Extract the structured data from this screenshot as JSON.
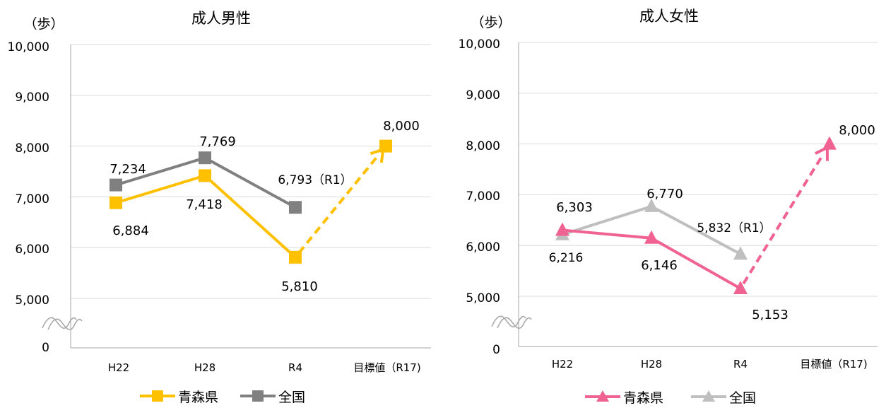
{
  "colors": {
    "male_aomori": "#FFC000",
    "male_national": "#808080",
    "female_aomori": "#F06292",
    "female_national": "#BFBFBF",
    "grid": "#D9D9D9",
    "axis": "#A6A6A6"
  },
  "chart_data": [
    {
      "type": "line",
      "title": "成人男性",
      "unit_label": "（歩）",
      "categories": [
        "H22",
        "H28",
        "R4",
        "目標値（R17)"
      ],
      "y_ticks": [
        "0",
        "5,000",
        "6,000",
        "7,000",
        "8,000",
        "9,000",
        "10,000"
      ],
      "axis_break": true,
      "ylim": [
        5000,
        10000
      ],
      "series": [
        {
          "name": "青森県",
          "marker": "square",
          "values": [
            6884,
            7418,
            5810,
            null
          ],
          "labels": [
            "6,884",
            "7,418",
            "5,810",
            ""
          ],
          "target": 8000,
          "target_label": "8,000"
        },
        {
          "name": "全国",
          "marker": "square",
          "values": [
            7234,
            7769,
            6793,
            null
          ],
          "labels": [
            "7,234",
            "7,769",
            "6,793（R1）",
            ""
          ]
        }
      ],
      "legend": [
        "青森県",
        "全国"
      ]
    },
    {
      "type": "line",
      "title": "成人女性",
      "unit_label": "（歩）",
      "categories": [
        "H22",
        "H28",
        "R4",
        "目標値（R17)"
      ],
      "y_ticks": [
        "0",
        "5,000",
        "6,000",
        "7,000",
        "8,000",
        "9,000",
        "10,000"
      ],
      "axis_break": true,
      "ylim": [
        5000,
        10000
      ],
      "series": [
        {
          "name": "青森県",
          "marker": "triangle",
          "values": [
            6303,
            6146,
            5153,
            null
          ],
          "labels": [
            "6,303",
            "6,146",
            "5,153",
            ""
          ],
          "target": 8000,
          "target_label": "8,000"
        },
        {
          "name": "全国",
          "marker": "triangle",
          "values": [
            6216,
            6770,
            5832,
            null
          ],
          "labels": [
            "6,216",
            "6,770",
            "5,832（R1）",
            ""
          ]
        }
      ],
      "legend": [
        "青森県",
        "全国"
      ]
    }
  ]
}
